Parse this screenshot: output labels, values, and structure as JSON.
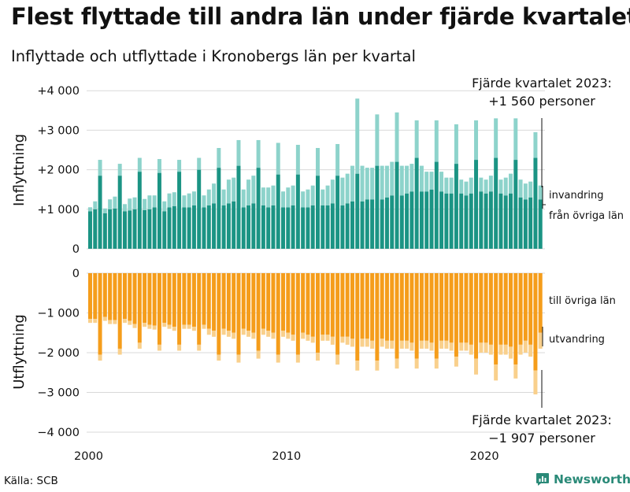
{
  "title": "Flest flyttade till andra län under fjärde kvartalet",
  "subtitle": "Inflyttade och utflyttade i Kronobergs län per kvartal",
  "source": "Källa: SCB",
  "brand": "Newsworthy",
  "colors": {
    "in_domestic": "#1b9484",
    "in_immigration": "#8dd3cb",
    "out_domestic": "#f59d1b",
    "out_emigration": "#f9d08c",
    "grid": "#d9d9d9",
    "brand": "#2a8a78"
  },
  "chart_data": {
    "type": "bar",
    "stacked": true,
    "x_ticks": [
      2000,
      2010,
      2020
    ],
    "x_tick_labels": [
      "2000",
      "2010",
      "2020"
    ],
    "panels": [
      {
        "name": "Inflyttning",
        "ylabel": "Inflyttning",
        "ylim": [
          0,
          4000
        ],
        "y_ticks": [
          0,
          1000,
          2000,
          3000,
          4000
        ],
        "y_tick_labels": [
          "0",
          "+1 000",
          "+2 000",
          "+3 000",
          "+4 000"
        ],
        "annotation": [
          "Fjärde kvartalet 2023:",
          "+1 560 personer"
        ],
        "series": [
          {
            "name": "från övriga län",
            "label": "från övriga län",
            "values": []
          },
          {
            "name": "invandring",
            "label": "invandring",
            "values": []
          }
        ]
      },
      {
        "name": "Utflyttning",
        "ylabel": "Utflyttning",
        "ylim": [
          -4000,
          0
        ],
        "y_ticks": [
          0,
          -1000,
          -2000,
          -3000,
          -4000
        ],
        "y_tick_labels": [
          "0",
          "−1 000",
          "−2 000",
          "−3 000",
          "−4 000"
        ],
        "annotation": [
          "Fjärde kvartalet 2023:",
          "−1 907 personer"
        ],
        "series": [
          {
            "name": "till övriga län",
            "label": "till övriga län",
            "values": []
          },
          {
            "name": "utvandring",
            "label": "utvandring",
            "values": []
          }
        ]
      }
    ],
    "quarters": [],
    "in_domestic": [
      950,
      1000,
      1850,
      900,
      1000,
      1020,
      1850,
      950,
      970,
      1000,
      1950,
      980,
      1000,
      1050,
      1920,
      950,
      1050,
      1080,
      1950,
      1050,
      1050,
      1100,
      2000,
      1050,
      1100,
      1150,
      2050,
      1100,
      1150,
      1200,
      2100,
      1050,
      1100,
      1150,
      2050,
      1100,
      1050,
      1100,
      1880,
      1050,
      1050,
      1100,
      1880,
      1050,
      1050,
      1100,
      1850,
      1100,
      1100,
      1150,
      1850,
      1100,
      1150,
      1200,
      1900,
      1200,
      1250,
      1250,
      2100,
      1250,
      1300,
      1350,
      2200,
      1350,
      1400,
      1450,
      2300,
      1450,
      1450,
      1500,
      2200,
      1450,
      1400,
      1400,
      2150,
      1400,
      1350,
      1400,
      2250,
      1450,
      1400,
      1450,
      2300,
      1400,
      1350,
      1400,
      2250,
      1300,
      1250,
      1300,
      2300,
      1250
    ],
    "in_immigration": [
      100,
      200,
      400,
      120,
      250,
      300,
      300,
      180,
      300,
      300,
      350,
      280,
      350,
      300,
      350,
      250,
      350,
      350,
      300,
      300,
      350,
      350,
      300,
      300,
      400,
      500,
      500,
      400,
      600,
      600,
      650,
      450,
      650,
      700,
      700,
      450,
      500,
      500,
      800,
      400,
      500,
      500,
      750,
      400,
      450,
      500,
      700,
      400,
      500,
      600,
      800,
      700,
      750,
      900,
      1900,
      900,
      800,
      800,
      1300,
      850,
      800,
      850,
      1250,
      750,
      700,
      700,
      950,
      650,
      500,
      450,
      1050,
      500,
      400,
      400,
      1000,
      350,
      350,
      400,
      1000,
      350,
      350,
      400,
      1000,
      350,
      450,
      500,
      1050,
      450,
      400,
      400,
      650,
      350
    ],
    "out_domestic": [
      -1150,
      -1150,
      -2050,
      -1100,
      -1180,
      -1180,
      -1900,
      -1150,
      -1200,
      -1280,
      -1750,
      -1250,
      -1300,
      -1320,
      -1800,
      -1250,
      -1300,
      -1350,
      -1800,
      -1300,
      -1300,
      -1350,
      -1800,
      -1300,
      -1400,
      -1450,
      -2050,
      -1400,
      -1450,
      -1500,
      -2050,
      -1400,
      -1450,
      -1500,
      -1950,
      -1400,
      -1450,
      -1500,
      -2050,
      -1450,
      -1500,
      -1550,
      -2050,
      -1500,
      -1550,
      -1600,
      -2000,
      -1550,
      -1550,
      -1600,
      -2050,
      -1600,
      -1600,
      -1650,
      -2200,
      -1650,
      -1650,
      -1700,
      -2200,
      -1650,
      -1700,
      -1700,
      -2150,
      -1700,
      -1700,
      -1750,
      -2150,
      -1700,
      -1700,
      -1750,
      -2150,
      -1700,
      -1700,
      -1750,
      -2100,
      -1750,
      -1750,
      -1800,
      -2150,
      -1750,
      -1750,
      -1800,
      -2300,
      -1800,
      -1800,
      -1850,
      -2300,
      -1800,
      -1700,
      -1800,
      -2450,
      -1500
    ],
    "out_emigration": [
      -100,
      -100,
      -150,
      -100,
      -100,
      -100,
      -150,
      -100,
      -100,
      -100,
      -150,
      -100,
      -100,
      -100,
      -150,
      -100,
      -100,
      -100,
      -150,
      -100,
      -100,
      -100,
      -150,
      -100,
      -150,
      -150,
      -150,
      -150,
      -150,
      -150,
      -200,
      -150,
      -150,
      -150,
      -200,
      -150,
      -150,
      -150,
      -200,
      -150,
      -150,
      -150,
      -200,
      -150,
      -150,
      -150,
      -200,
      -150,
      -150,
      -200,
      -250,
      -150,
      -200,
      -200,
      -250,
      -200,
      -200,
      -200,
      -250,
      -200,
      -200,
      -200,
      -250,
      -200,
      -200,
      -200,
      -250,
      -200,
      -200,
      -200,
      -250,
      -200,
      -200,
      -200,
      -250,
      -200,
      -200,
      -250,
      -400,
      -250,
      -250,
      -250,
      -400,
      -250,
      -250,
      -300,
      -350,
      -250,
      -300,
      -300,
      -600,
      -400
    ]
  }
}
